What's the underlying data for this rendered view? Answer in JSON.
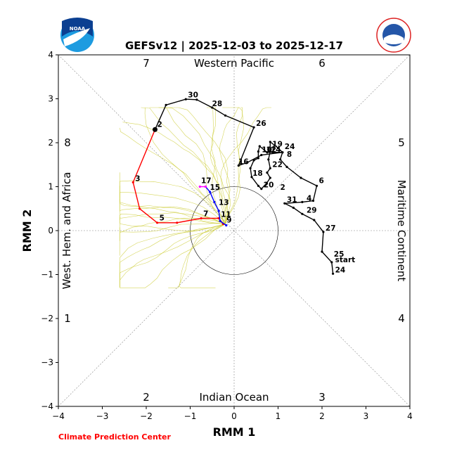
{
  "chart_data": {
    "type": "line",
    "title": "GEFSv12 | 2025-12-03 to 2025-12-17",
    "xlabel": "RMM 1",
    "ylabel": "RMM 2",
    "xlim": [
      -4,
      4
    ],
    "ylim": [
      -4,
      4
    ],
    "xticks": [
      "−4",
      "−3",
      "−2",
      "−1",
      "0",
      "1",
      "2",
      "3",
      "4"
    ],
    "yticks": [
      "−4",
      "−3",
      "−2",
      "−1",
      "0",
      "1",
      "2",
      "3",
      "4"
    ],
    "regions": {
      "top": "Western Pacific",
      "bottom": "Indian Ocean",
      "left": "West. Hem. and Africa",
      "right": "Maritime Continent"
    },
    "phases": {
      "p1": "1",
      "p2": "2",
      "p3": "3",
      "p4": "4",
      "p5": "5",
      "p6": "6",
      "p7": "7",
      "p8": "8"
    },
    "credit": "Climate Prediction Center",
    "logos": {
      "left": "NOAA",
      "right": "NATIONAL WEATHER SERVICE"
    },
    "colors": {
      "observed": "#000000",
      "forecast_week1": "#ff0000",
      "forecast_week2": "#0000ff",
      "forecast_week3": "#ff00ff",
      "ensemble": "#cccc33",
      "credit": "#ff0000"
    },
    "series": [
      {
        "role": "observed",
        "points": [
          [
            2.25,
            -0.98
          ],
          [
            2.22,
            -0.72
          ],
          [
            2.0,
            -0.48
          ],
          [
            2.03,
            -0.03
          ],
          [
            1.82,
            0.24
          ],
          [
            1.55,
            0.38
          ],
          [
            1.35,
            0.52
          ],
          [
            1.15,
            0.62
          ],
          [
            1.55,
            0.65
          ],
          [
            1.8,
            0.68
          ],
          [
            1.88,
            1.02
          ],
          [
            1.52,
            1.2
          ],
          [
            1.2,
            1.45
          ],
          [
            1.05,
            1.62
          ],
          [
            1.1,
            1.78
          ],
          [
            1.0,
            1.88
          ],
          [
            0.82,
            2.02
          ],
          [
            0.82,
            1.8
          ],
          [
            0.78,
            1.62
          ],
          [
            0.82,
            1.42
          ],
          [
            0.75,
            1.32
          ],
          [
            0.82,
            1.2
          ],
          [
            0.74,
            1.08
          ],
          [
            0.62,
            0.95
          ],
          [
            0.55,
            1.02
          ],
          [
            0.4,
            1.22
          ],
          [
            0.37,
            1.42
          ],
          [
            0.45,
            1.6
          ],
          [
            0.55,
            1.65
          ],
          [
            0.55,
            1.8
          ],
          [
            0.58,
            1.92
          ],
          [
            0.75,
            1.78
          ],
          [
            0.88,
            1.78
          ],
          [
            1.1,
            1.78
          ],
          [
            0.62,
            1.72
          ],
          [
            0.3,
            1.55
          ],
          [
            0.1,
            1.48
          ],
          [
            0.45,
            2.35
          ],
          [
            -0.2,
            2.62
          ],
          [
            -0.5,
            2.8
          ],
          [
            -0.85,
            2.98
          ],
          [
            -1.1,
            2.99
          ],
          [
            -1.55,
            2.86
          ],
          [
            -1.8,
            2.3
          ]
        ]
      },
      {
        "role": "forecast_week1",
        "points": [
          [
            -1.8,
            2.3
          ],
          [
            -2.3,
            1.1
          ],
          [
            -2.15,
            0.5
          ],
          [
            -1.75,
            0.18
          ],
          [
            -1.3,
            0.18
          ],
          [
            -0.75,
            0.28
          ],
          [
            -0.35,
            0.28
          ],
          [
            -0.25,
            0.15
          ]
        ]
      },
      {
        "role": "forecast_week2",
        "points": [
          [
            -0.18,
            0.12
          ],
          [
            -0.32,
            0.22
          ],
          [
            -0.35,
            0.45
          ],
          [
            -0.45,
            0.65
          ],
          [
            -0.55,
            0.88
          ],
          [
            -0.65,
            1.0
          ]
        ]
      },
      {
        "role": "forecast_week3",
        "points": [
          [
            -0.65,
            1.0
          ],
          [
            -0.78,
            1.0
          ]
        ]
      }
    ],
    "day_labels": [
      {
        "text": "start",
        "x": 2.25,
        "y": -0.75
      },
      {
        "text": "24",
        "x": 2.25,
        "y": -0.98
      },
      {
        "text": "25",
        "x": 2.22,
        "y": -0.62
      },
      {
        "text": "27",
        "x": 2.03,
        "y": -0.03
      },
      {
        "text": "29",
        "x": 1.6,
        "y": 0.38
      },
      {
        "text": "31",
        "x": 1.15,
        "y": 0.62
      },
      {
        "text": "4",
        "x": 1.6,
        "y": 0.65
      },
      {
        "text": "6",
        "x": 1.88,
        "y": 1.05
      },
      {
        "text": "2",
        "x": 1.0,
        "y": 0.9
      },
      {
        "text": "8",
        "x": 1.15,
        "y": 1.65
      },
      {
        "text": "20",
        "x": 0.62,
        "y": 0.95
      },
      {
        "text": "22",
        "x": 0.82,
        "y": 1.42
      },
      {
        "text": "18",
        "x": 0.37,
        "y": 1.22
      },
      {
        "text": "16",
        "x": 0.05,
        "y": 1.48
      },
      {
        "text": "10",
        "x": 0.58,
        "y": 1.75
      },
      {
        "text": "12",
        "x": 0.68,
        "y": 1.75
      },
      {
        "text": "14",
        "x": 0.78,
        "y": 1.75
      },
      {
        "text": "19",
        "x": 0.82,
        "y": 1.88
      },
      {
        "text": "24",
        "x": 1.1,
        "y": 1.82
      },
      {
        "text": "26",
        "x": 0.45,
        "y": 2.35
      },
      {
        "text": "28",
        "x": -0.55,
        "y": 2.8
      },
      {
        "text": "30",
        "x": -1.1,
        "y": 3.0
      },
      {
        "text": "2",
        "x": -1.8,
        "y": 2.33
      },
      {
        "text": "3",
        "x": -2.3,
        "y": 1.1
      },
      {
        "text": "5",
        "x": -1.75,
        "y": 0.2
      },
      {
        "text": "7",
        "x": -0.75,
        "y": 0.3
      },
      {
        "text": "9",
        "x": -0.22,
        "y": 0.15
      },
      {
        "text": "11",
        "x": -0.35,
        "y": 0.28
      },
      {
        "text": "13",
        "x": -0.4,
        "y": 0.55
      },
      {
        "text": "15",
        "x": -0.6,
        "y": 0.9
      },
      {
        "text": "17",
        "x": -0.8,
        "y": 1.05
      }
    ],
    "grid": false,
    "unit_circle_radius": 1
  }
}
